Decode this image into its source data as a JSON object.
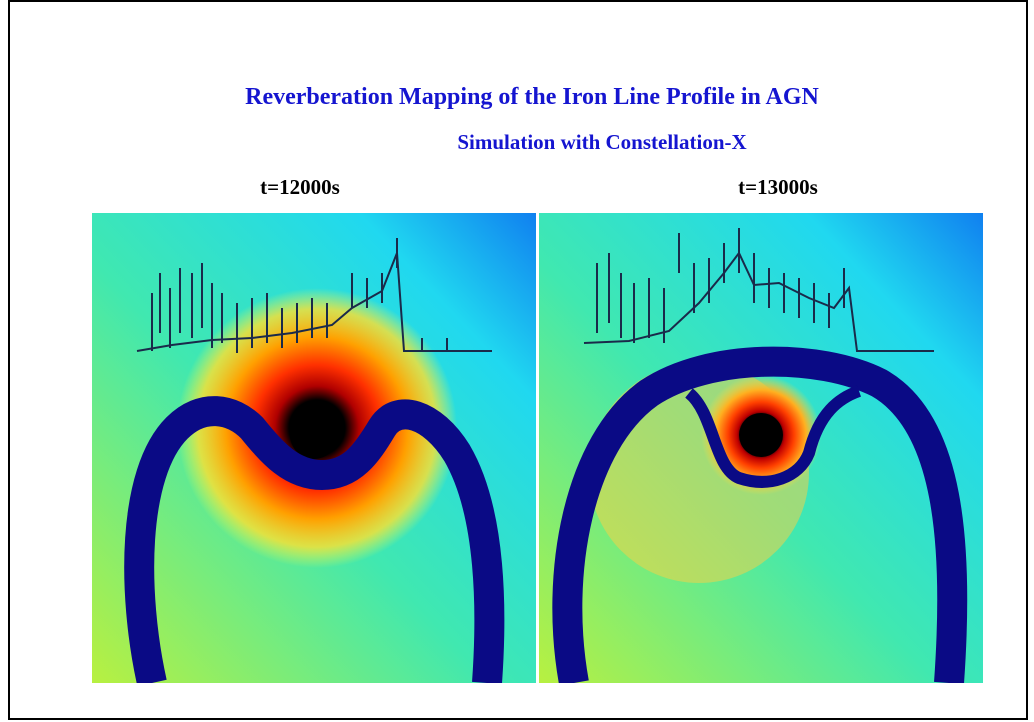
{
  "slide": {
    "title": "Reverberation Mapping of the Iron Line Profile in AGN",
    "subtitle": "Simulation with Constellation-X",
    "panels": [
      {
        "label": "t=12000s"
      },
      {
        "label": "t=13000s"
      }
    ]
  }
}
